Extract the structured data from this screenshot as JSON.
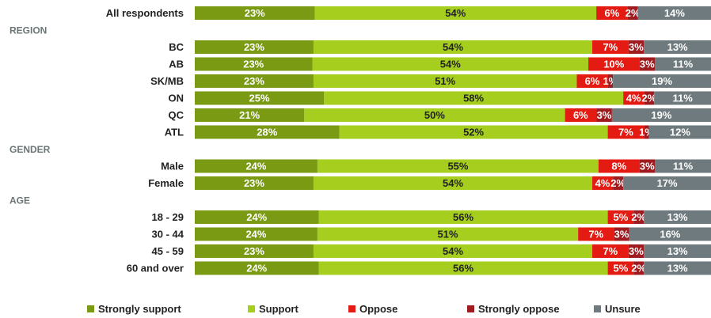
{
  "chart_data": {
    "type": "bar",
    "stacked": true,
    "orientation": "horizontal",
    "title": "",
    "xlabel": "",
    "ylabel": "",
    "series": [
      {
        "name": "Strongly support",
        "color": "#7a9a14"
      },
      {
        "name": "Support",
        "color": "#a6ce1e"
      },
      {
        "name": "Oppose",
        "color": "#e41b12"
      },
      {
        "name": "Strongly oppose",
        "color": "#a01b1f"
      },
      {
        "name": "Unsure",
        "color": "#6e7a7d"
      }
    ],
    "rows": [
      {
        "label": "All respondents",
        "values": [
          23,
          54,
          6,
          2,
          14
        ]
      },
      {
        "section": "REGION"
      },
      {
        "label": "BC",
        "values": [
          23,
          54,
          7,
          3,
          13
        ]
      },
      {
        "label": "AB",
        "values": [
          23,
          54,
          10,
          3,
          11
        ]
      },
      {
        "label": "SK/MB",
        "values": [
          23,
          51,
          6,
          1,
          19
        ]
      },
      {
        "label": "ON",
        "values": [
          25,
          58,
          4,
          2,
          11
        ]
      },
      {
        "label": "QC",
        "values": [
          21,
          50,
          6,
          3,
          19
        ]
      },
      {
        "label": "ATL",
        "values": [
          28,
          52,
          7,
          1,
          12
        ]
      },
      {
        "section": "GENDER"
      },
      {
        "label": "Male",
        "values": [
          24,
          55,
          8,
          3,
          11
        ]
      },
      {
        "label": "Female",
        "values": [
          23,
          54,
          4,
          2,
          17
        ]
      },
      {
        "section": "AGE"
      },
      {
        "label": "18 - 29",
        "values": [
          24,
          56,
          5,
          2,
          13
        ]
      },
      {
        "label": "30 - 44",
        "values": [
          24,
          51,
          7,
          3,
          16
        ]
      },
      {
        "label": "45 - 59",
        "values": [
          23,
          54,
          7,
          3,
          13
        ]
      },
      {
        "label": "60 and over",
        "values": [
          24,
          56,
          5,
          2,
          13
        ]
      }
    ],
    "value_suffix": "%",
    "legend_position": "bottom"
  }
}
